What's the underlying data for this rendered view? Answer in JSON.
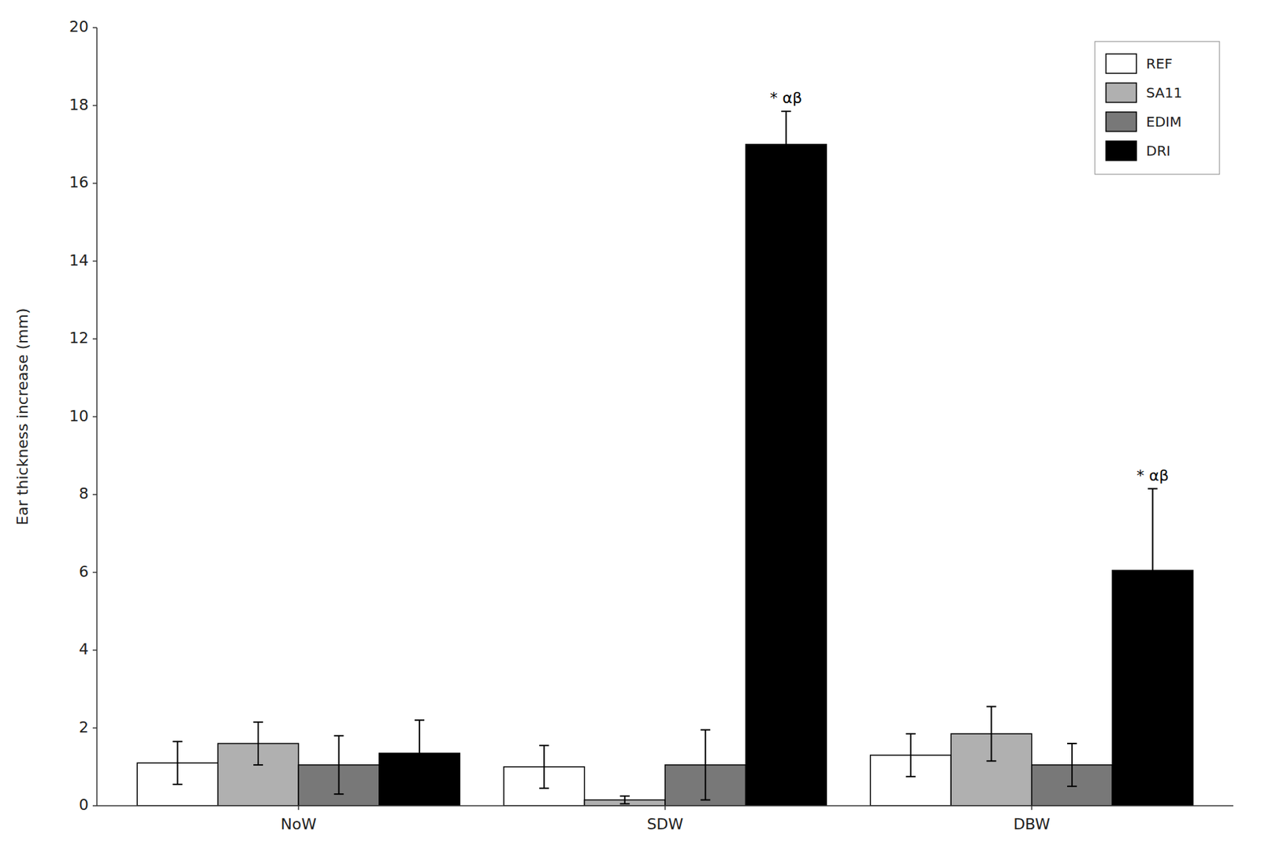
{
  "chart_data": {
    "type": "bar",
    "categories": [
      "NoW",
      "SDW",
      "DBW"
    ],
    "series": [
      {
        "name": "REF",
        "color": "#ffffff",
        "values": [
          1.1,
          1.0,
          1.3
        ],
        "errors": [
          0.55,
          0.55,
          0.55
        ]
      },
      {
        "name": "SA11",
        "color": "#b0b0b0",
        "values": [
          1.6,
          0.15,
          1.85
        ],
        "errors": [
          0.55,
          0.1,
          0.7
        ]
      },
      {
        "name": "EDIM",
        "color": "#787878",
        "values": [
          1.05,
          1.05,
          1.05
        ],
        "errors": [
          0.75,
          0.9,
          0.55
        ]
      },
      {
        "name": "DRI",
        "color": "#000000",
        "values": [
          1.35,
          17.0,
          6.05
        ],
        "errors": [
          0.85,
          0.85,
          2.1
        ]
      }
    ],
    "ylabel": "Ear thickness increase (mm)",
    "ylim": [
      0,
      20
    ],
    "yticks": [
      0,
      2,
      4,
      6,
      8,
      10,
      12,
      14,
      16,
      18,
      20
    ],
    "annotations": [
      {
        "category": 1,
        "series": 3,
        "text": "* αβ"
      },
      {
        "category": 2,
        "series": 3,
        "text": "* αβ"
      }
    ],
    "legend": "upper right",
    "grid": false
  }
}
